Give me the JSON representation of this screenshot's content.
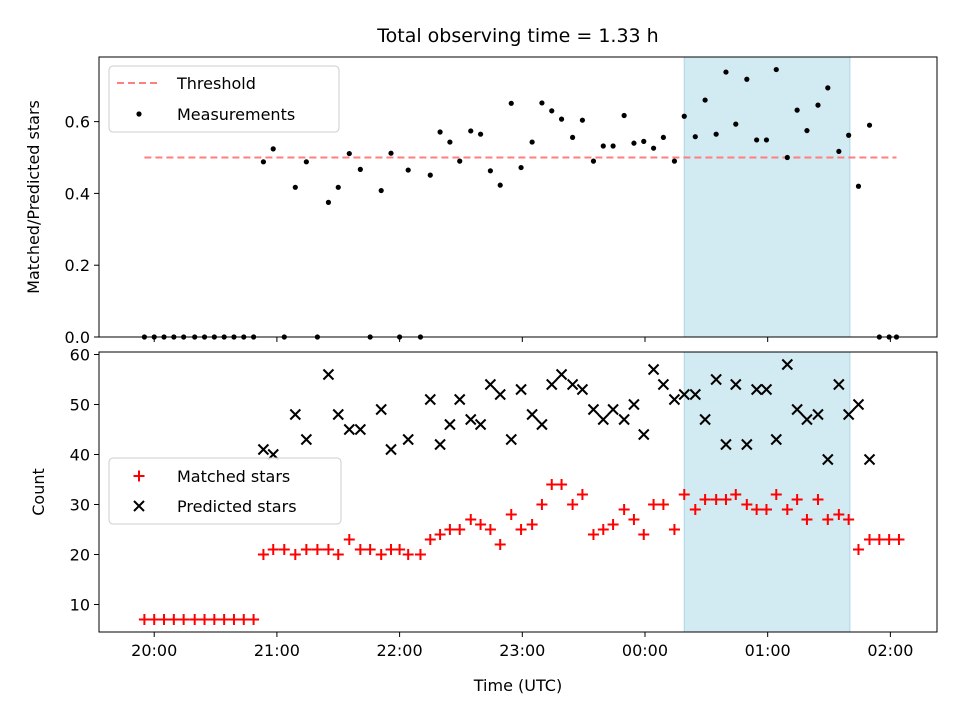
{
  "chart_data": [
    {
      "type": "scatter",
      "title": "Total observing time = 1.33 h",
      "ylabel": "Matched/Predicted stars",
      "xlabel": "",
      "xlim": [
        19.55,
        26.38
      ],
      "ylim": [
        0,
        0.78
      ],
      "yticks": [
        0.0,
        0.2,
        0.4,
        0.6
      ],
      "ytick_labels": [
        "0.0",
        "0.2",
        "0.4",
        "0.6"
      ],
      "xticks": [
        20,
        21,
        22,
        23,
        24,
        25,
        26
      ],
      "shade": {
        "from": 24.32,
        "to": 25.67,
        "color": "#add8e6"
      },
      "threshold": {
        "name": "Threshold",
        "value": 0.5,
        "x_from": 19.92,
        "x_to": 26.05,
        "color": "#ff7f7f"
      },
      "legend": {
        "placement": "upper-left",
        "entries": [
          "Threshold",
          "Measurements"
        ]
      },
      "series": [
        {
          "name": "Measurements",
          "marker": "dot",
          "color": "#000000",
          "points": [
            [
              19.92,
              0.0
            ],
            [
              20.0,
              0.0
            ],
            [
              20.08,
              0.0
            ],
            [
              20.16,
              0.0
            ],
            [
              20.24,
              0.0
            ],
            [
              20.33,
              0.0
            ],
            [
              20.41,
              0.0
            ],
            [
              20.49,
              0.0
            ],
            [
              20.57,
              0.0
            ],
            [
              20.65,
              0.0
            ],
            [
              20.73,
              0.0
            ],
            [
              20.81,
              0.0
            ],
            [
              20.89,
              0.488
            ],
            [
              20.97,
              0.524
            ],
            [
              21.06,
              0.0
            ],
            [
              21.15,
              0.417
            ],
            [
              21.24,
              0.488
            ],
            [
              21.33,
              0.0
            ],
            [
              21.42,
              0.375
            ],
            [
              21.5,
              0.417
            ],
            [
              21.59,
              0.511
            ],
            [
              21.68,
              0.467
            ],
            [
              21.76,
              0.0
            ],
            [
              21.85,
              0.408
            ],
            [
              21.93,
              0.512
            ],
            [
              22.0,
              0.0
            ],
            [
              22.07,
              0.465
            ],
            [
              22.17,
              0.0
            ],
            [
              22.25,
              0.451
            ],
            [
              22.33,
              0.571
            ],
            [
              22.41,
              0.543
            ],
            [
              22.49,
              0.49
            ],
            [
              22.58,
              0.574
            ],
            [
              22.66,
              0.565
            ],
            [
              22.74,
              0.463
            ],
            [
              22.82,
              0.423
            ],
            [
              22.91,
              0.651
            ],
            [
              22.99,
              0.472
            ],
            [
              23.08,
              0.543
            ],
            [
              23.16,
              0.652
            ],
            [
              23.24,
              0.63
            ],
            [
              23.32,
              0.607
            ],
            [
              23.41,
              0.556
            ],
            [
              23.49,
              0.604
            ],
            [
              23.58,
              0.49
            ],
            [
              23.66,
              0.532
            ],
            [
              23.74,
              0.532
            ],
            [
              23.83,
              0.617
            ],
            [
              23.91,
              0.54
            ],
            [
              23.99,
              0.545
            ],
            [
              24.07,
              0.526
            ],
            [
              24.15,
              0.556
            ],
            [
              24.24,
              0.49
            ],
            [
              24.32,
              0.615
            ],
            [
              24.41,
              0.558
            ],
            [
              24.49,
              0.66
            ],
            [
              24.58,
              0.565
            ],
            [
              24.66,
              0.738
            ],
            [
              24.74,
              0.593
            ],
            [
              24.83,
              0.718
            ],
            [
              24.91,
              0.549
            ],
            [
              24.99,
              0.549
            ],
            [
              25.07,
              0.745
            ],
            [
              25.16,
              0.5
            ],
            [
              25.24,
              0.632
            ],
            [
              25.32,
              0.575
            ],
            [
              25.41,
              0.646
            ],
            [
              25.49,
              0.694
            ],
            [
              25.58,
              0.517
            ],
            [
              25.66,
              0.562
            ],
            [
              25.74,
              0.42
            ],
            [
              25.83,
              0.59
            ],
            [
              25.91,
              0.0
            ],
            [
              25.99,
              0.0
            ],
            [
              26.05,
              0.0
            ]
          ]
        }
      ]
    },
    {
      "type": "scatter",
      "title": "",
      "ylabel": "Count",
      "xlabel": "Time (UTC)",
      "xlim": [
        19.55,
        26.38
      ],
      "ylim": [
        4.5,
        60.5
      ],
      "yticks": [
        10,
        20,
        30,
        40,
        50,
        60
      ],
      "ytick_labels": [
        "10",
        "20",
        "30",
        "40",
        "50",
        "60"
      ],
      "xticks": [
        20,
        21,
        22,
        23,
        24,
        25,
        26
      ],
      "xtick_labels": [
        "20:00",
        "21:00",
        "22:00",
        "23:00",
        "00:00",
        "01:00",
        "02:00"
      ],
      "shade": {
        "from": 24.32,
        "to": 25.67,
        "color": "#add8e6"
      },
      "legend": {
        "placement": "center-left",
        "entries": [
          "Matched stars",
          "Predicted stars"
        ]
      },
      "series": [
        {
          "name": "Matched stars",
          "marker": "plus",
          "color": "#ff0000",
          "points": [
            [
              19.92,
              7
            ],
            [
              20.0,
              7
            ],
            [
              20.08,
              7
            ],
            [
              20.16,
              7
            ],
            [
              20.24,
              7
            ],
            [
              20.33,
              7
            ],
            [
              20.41,
              7
            ],
            [
              20.49,
              7
            ],
            [
              20.57,
              7
            ],
            [
              20.65,
              7
            ],
            [
              20.73,
              7
            ],
            [
              20.81,
              7
            ],
            [
              20.89,
              20
            ],
            [
              20.97,
              21
            ],
            [
              21.06,
              21
            ],
            [
              21.15,
              20
            ],
            [
              21.24,
              21
            ],
            [
              21.33,
              21
            ],
            [
              21.42,
              21
            ],
            [
              21.5,
              20
            ],
            [
              21.59,
              23
            ],
            [
              21.68,
              21
            ],
            [
              21.76,
              21
            ],
            [
              21.85,
              20
            ],
            [
              21.93,
              21
            ],
            [
              22.0,
              21
            ],
            [
              22.07,
              20
            ],
            [
              22.17,
              20
            ],
            [
              22.25,
              23
            ],
            [
              22.33,
              24
            ],
            [
              22.41,
              25
            ],
            [
              22.49,
              25
            ],
            [
              22.58,
              27
            ],
            [
              22.66,
              26
            ],
            [
              22.74,
              25
            ],
            [
              22.82,
              22
            ],
            [
              22.91,
              28
            ],
            [
              22.99,
              25
            ],
            [
              23.08,
              26
            ],
            [
              23.16,
              30
            ],
            [
              23.24,
              34
            ],
            [
              23.32,
              34
            ],
            [
              23.41,
              30
            ],
            [
              23.49,
              32
            ],
            [
              23.58,
              24
            ],
            [
              23.66,
              25
            ],
            [
              23.74,
              26
            ],
            [
              23.83,
              29
            ],
            [
              23.91,
              27
            ],
            [
              23.99,
              24
            ],
            [
              24.07,
              30
            ],
            [
              24.15,
              30
            ],
            [
              24.24,
              25
            ],
            [
              24.32,
              32
            ],
            [
              24.41,
              29
            ],
            [
              24.49,
              31
            ],
            [
              24.58,
              31
            ],
            [
              24.66,
              31
            ],
            [
              24.74,
              32
            ],
            [
              24.83,
              30
            ],
            [
              24.91,
              29
            ],
            [
              24.99,
              29
            ],
            [
              25.07,
              32
            ],
            [
              25.16,
              29
            ],
            [
              25.24,
              31
            ],
            [
              25.32,
              27
            ],
            [
              25.41,
              31
            ],
            [
              25.49,
              27
            ],
            [
              25.58,
              28
            ],
            [
              25.66,
              27
            ],
            [
              25.74,
              21
            ],
            [
              25.83,
              23
            ],
            [
              25.91,
              23
            ],
            [
              25.99,
              23
            ],
            [
              26.07,
              23
            ]
          ]
        },
        {
          "name": "Predicted stars",
          "marker": "x",
          "color": "#000000",
          "points": [
            [
              20.89,
              41
            ],
            [
              20.97,
              40
            ],
            [
              21.15,
              48
            ],
            [
              21.24,
              43
            ],
            [
              21.42,
              56
            ],
            [
              21.5,
              48
            ],
            [
              21.59,
              45
            ],
            [
              21.68,
              45
            ],
            [
              21.85,
              49
            ],
            [
              21.93,
              41
            ],
            [
              22.07,
              43
            ],
            [
              22.25,
              51
            ],
            [
              22.33,
              42
            ],
            [
              22.41,
              46
            ],
            [
              22.49,
              51
            ],
            [
              22.58,
              47
            ],
            [
              22.66,
              46
            ],
            [
              22.74,
              54
            ],
            [
              22.82,
              52
            ],
            [
              22.91,
              43
            ],
            [
              22.99,
              53
            ],
            [
              23.08,
              48
            ],
            [
              23.16,
              46
            ],
            [
              23.24,
              54
            ],
            [
              23.32,
              56
            ],
            [
              23.41,
              54
            ],
            [
              23.49,
              53
            ],
            [
              23.58,
              49
            ],
            [
              23.66,
              47
            ],
            [
              23.74,
              49
            ],
            [
              23.83,
              47
            ],
            [
              23.91,
              50
            ],
            [
              23.99,
              44
            ],
            [
              24.07,
              57
            ],
            [
              24.15,
              54
            ],
            [
              24.24,
              51
            ],
            [
              24.32,
              52
            ],
            [
              24.41,
              52
            ],
            [
              24.49,
              47
            ],
            [
              24.58,
              55
            ],
            [
              24.66,
              42
            ],
            [
              24.74,
              54
            ],
            [
              24.83,
              42
            ],
            [
              24.91,
              53
            ],
            [
              24.99,
              53
            ],
            [
              25.07,
              43
            ],
            [
              25.16,
              58
            ],
            [
              25.24,
              49
            ],
            [
              25.32,
              47
            ],
            [
              25.41,
              48
            ],
            [
              25.49,
              39
            ],
            [
              25.58,
              54
            ],
            [
              25.66,
              48
            ],
            [
              25.74,
              50
            ],
            [
              25.83,
              39
            ]
          ]
        }
      ]
    }
  ]
}
